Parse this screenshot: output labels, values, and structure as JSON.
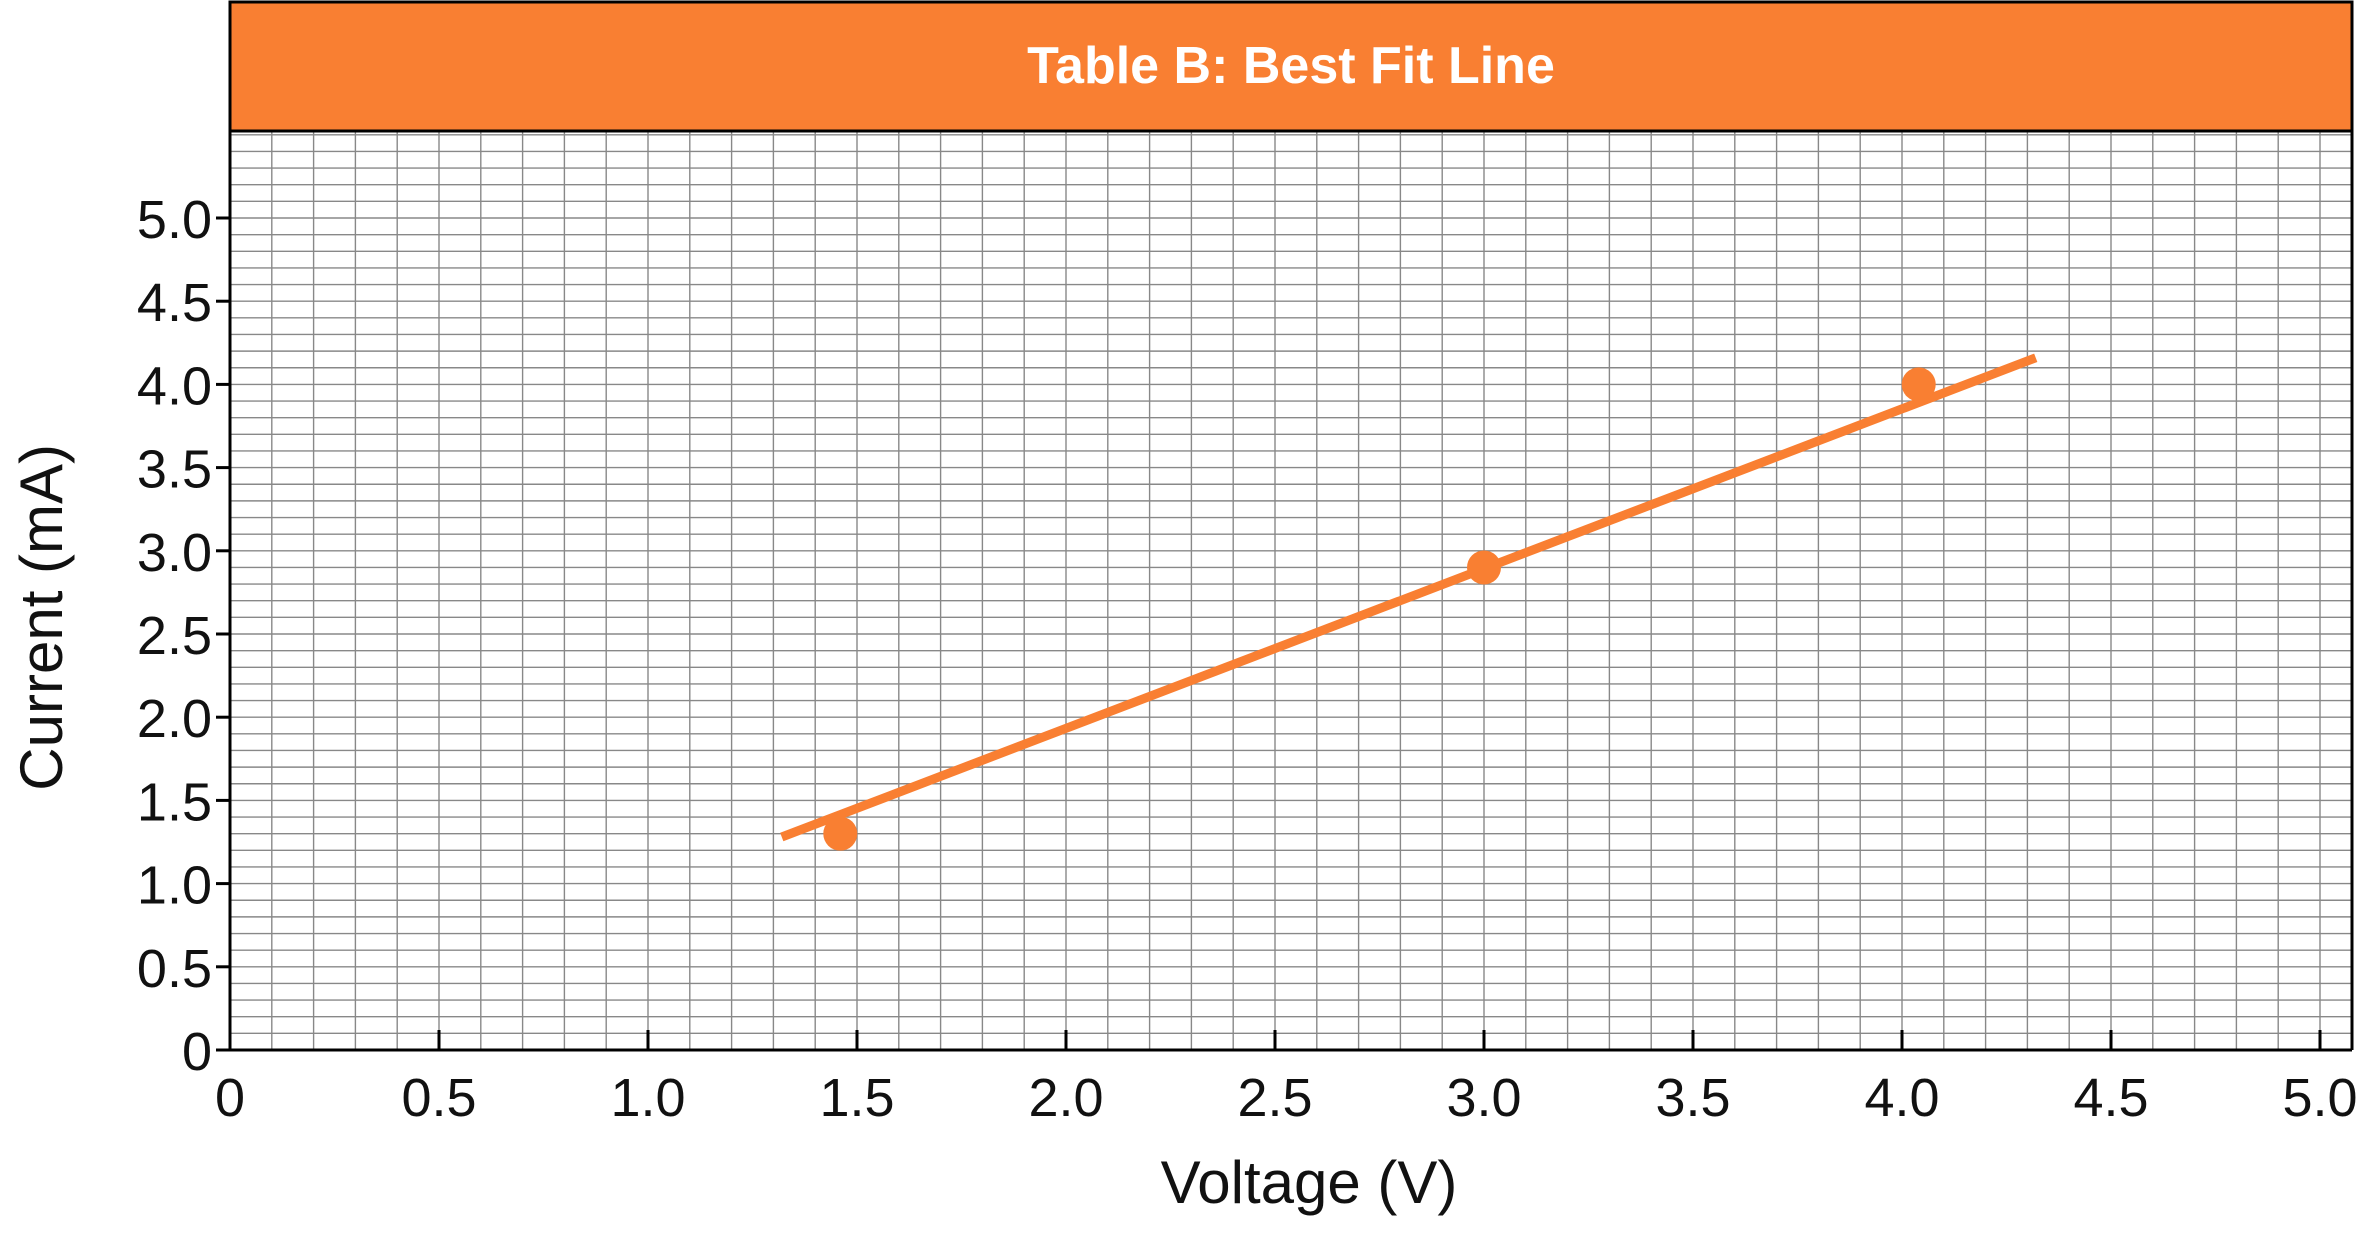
{
  "chart_data": {
    "type": "scatter",
    "title": "Table B: Best Fit Line",
    "xlabel": "Voltage (V)",
    "ylabel": "Current (mA)",
    "xlim": [
      0,
      5.1
    ],
    "ylim": [
      0,
      5.5
    ],
    "x_ticks": [
      "0",
      "0.5",
      "1.0",
      "1.5",
      "2.0",
      "2.5",
      "3.0",
      "3.5",
      "4.0",
      "4.5",
      "5.0"
    ],
    "x_tick_values": [
      0,
      0.5,
      1.0,
      1.5,
      2.0,
      2.5,
      3.0,
      3.5,
      4.0,
      4.5,
      5.0
    ],
    "y_ticks": [
      "0",
      "0.5",
      "1.0",
      "1.5",
      "2.0",
      "2.5",
      "3.0",
      "3.5",
      "4.0",
      "4.5",
      "5.0"
    ],
    "y_tick_values": [
      0,
      0.5,
      1.0,
      1.5,
      2.0,
      2.5,
      3.0,
      3.5,
      4.0,
      4.5,
      5.0
    ],
    "grid": true,
    "grid_minor_step": 0.1,
    "series": [
      {
        "x": [
          1.46,
          3.0,
          4.04
        ],
        "y": [
          1.3,
          2.9,
          4.0
        ]
      }
    ],
    "best_fit_line": {
      "x": [
        1.32,
        4.32
      ],
      "y": [
        1.28,
        4.16
      ]
    },
    "colors": {
      "accent": "#F97F32",
      "title_bg": "#F97F32",
      "grid": "#888888",
      "axis": "#000000"
    }
  }
}
